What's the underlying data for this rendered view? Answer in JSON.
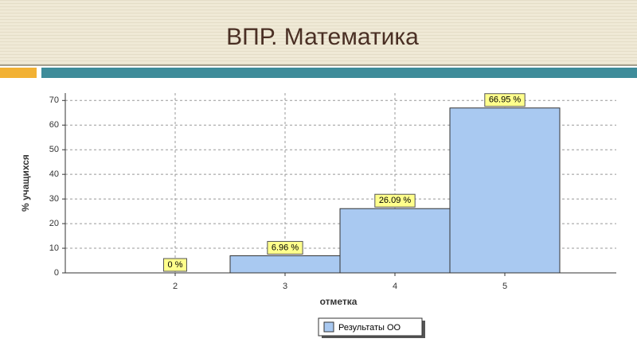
{
  "chart_data": {
    "type": "bar",
    "title": "ВПР. Математика",
    "x_label": "отметка",
    "y_label": "% учащихся",
    "categories": [
      "2",
      "3",
      "4",
      "5"
    ],
    "series": [
      {
        "name": "Результаты ОО",
        "color": "#a9c9f1",
        "values": [
          0,
          6.96,
          26.09,
          66.95
        ],
        "value_labels": [
          "0 %",
          "6.96 %",
          "26.09 %",
          "66.95 %"
        ]
      }
    ],
    "ylim": [
      0,
      73
    ],
    "yticks": [
      0,
      10,
      20,
      30,
      40,
      50,
      60,
      70
    ],
    "grid": true,
    "legend": "bottom"
  }
}
